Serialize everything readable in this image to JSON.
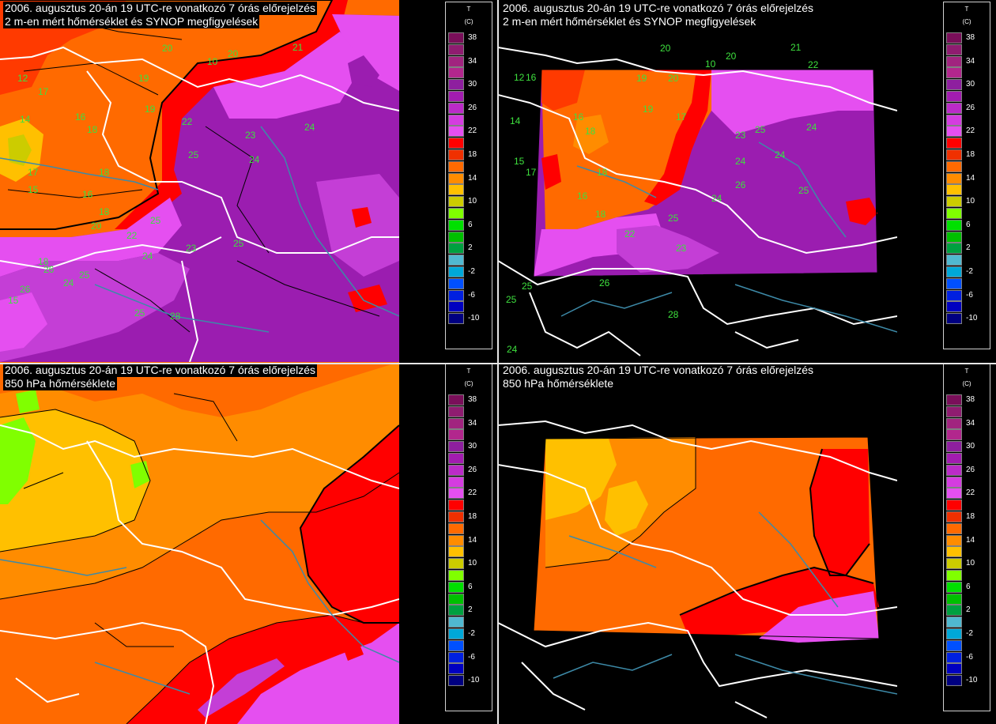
{
  "panels": [
    {
      "title_line1": "2006. augusztus 20-án 19 UTC-re vonatkozó  7 órás előrejelzés",
      "title_line2": "2 m-en mért hőmérséklet és SYNOP megfigyelések",
      "type": "2m",
      "framed": false,
      "observations": [
        {
          "value": "20"
        },
        {
          "value": "10"
        },
        {
          "value": "19"
        },
        {
          "value": "20"
        },
        {
          "value": "21"
        },
        {
          "value": "12"
        },
        {
          "value": "17"
        },
        {
          "value": "19"
        },
        {
          "value": "24"
        },
        {
          "value": "22"
        },
        {
          "value": "14"
        },
        {
          "value": "16"
        },
        {
          "value": "18"
        },
        {
          "value": "23"
        },
        {
          "value": "25"
        },
        {
          "value": "17"
        },
        {
          "value": "18"
        },
        {
          "value": "24"
        },
        {
          "value": "16"
        },
        {
          "value": "18"
        },
        {
          "value": "25"
        },
        {
          "value": "24"
        },
        {
          "value": "20"
        },
        {
          "value": "22"
        },
        {
          "value": "23"
        },
        {
          "value": "18"
        },
        {
          "value": "26"
        },
        {
          "value": "25"
        },
        {
          "value": "24"
        },
        {
          "value": "26"
        },
        {
          "value": "25"
        },
        {
          "value": "28"
        },
        {
          "value": "25"
        },
        {
          "value": "15"
        },
        {
          "value": "15"
        }
      ]
    },
    {
      "title_line1": "2006. augusztus 20-án 19 UTC-re vonatkozó  7 órás előrejelzés",
      "title_line2": "2 m-en mért hőmérséklet és SYNOP megfigyelések",
      "type": "2m",
      "framed": true,
      "observations": [
        {
          "value": "20"
        },
        {
          "value": "10"
        },
        {
          "value": "19"
        },
        {
          "value": "20"
        },
        {
          "value": "21"
        },
        {
          "value": "22"
        },
        {
          "value": "12"
        },
        {
          "value": "16"
        },
        {
          "value": "20"
        },
        {
          "value": "17"
        },
        {
          "value": "19"
        },
        {
          "value": "14"
        },
        {
          "value": "16"
        },
        {
          "value": "18"
        },
        {
          "value": "23"
        },
        {
          "value": "24"
        },
        {
          "value": "25"
        },
        {
          "value": "17"
        },
        {
          "value": "18"
        },
        {
          "value": "24"
        },
        {
          "value": "16"
        },
        {
          "value": "18"
        },
        {
          "value": "25"
        },
        {
          "value": "24"
        },
        {
          "value": "26"
        },
        {
          "value": "22"
        },
        {
          "value": "23"
        },
        {
          "value": "24"
        },
        {
          "value": "25"
        },
        {
          "value": "26"
        },
        {
          "value": "25"
        },
        {
          "value": "25"
        },
        {
          "value": "28"
        },
        {
          "value": "24"
        },
        {
          "value": "15"
        }
      ]
    },
    {
      "title_line1": "2006. augusztus 20-án 19 UTC-re vonatkozó  7 órás előrejelzés",
      "title_line2": "850 hPa hőmérséklete",
      "type": "850",
      "framed": false,
      "observations": []
    },
    {
      "title_line1": "2006. augusztus 20-án 19 UTC-re vonatkozó  7 órás előrejelzés",
      "title_line2": "850 hPa hőmérséklete",
      "type": "850",
      "framed": true,
      "observations": []
    }
  ],
  "legend": {
    "variable": "T",
    "unit": "(C)",
    "levels": [
      {
        "label": "38",
        "color": "#7a0f5a"
      },
      {
        "label": "",
        "color": "#8f1c70"
      },
      {
        "label": "34",
        "color": "#a1247f"
      },
      {
        "label": "",
        "color": "#b2278d"
      },
      {
        "label": "30",
        "color": "#8e1f9f"
      },
      {
        "label": "",
        "color": "#a21cb0"
      },
      {
        "label": "26",
        "color": "#bb2bc8"
      },
      {
        "label": "",
        "color": "#d43ce0"
      },
      {
        "label": "22",
        "color": "#e54ff0"
      },
      {
        "label": "",
        "color": "#ff0000"
      },
      {
        "label": "18",
        "color": "#f03000"
      },
      {
        "label": "",
        "color": "#ff6a00"
      },
      {
        "label": "14",
        "color": "#ff8c00"
      },
      {
        "label": "",
        "color": "#ffc000"
      },
      {
        "label": "10",
        "color": "#cccc00"
      },
      {
        "label": "",
        "color": "#80ff00"
      },
      {
        "label": "6",
        "color": "#00e000"
      },
      {
        "label": "",
        "color": "#00c000"
      },
      {
        "label": "2",
        "color": "#00a040"
      },
      {
        "label": "",
        "color": "#50b8d0"
      },
      {
        "label": "-2",
        "color": "#00a8d8"
      },
      {
        "label": "",
        "color": "#0050ff"
      },
      {
        "label": "-6",
        "color": "#0020e0"
      },
      {
        "label": "",
        "color": "#0000c0"
      },
      {
        "label": "-10",
        "color": "#000080"
      }
    ]
  },
  "colors": {
    "magenta_light": "#e54ff0",
    "magenta_mid": "#c43ed6",
    "purple_dark": "#9b1db0",
    "red": "#ff0000",
    "red_orange": "#ff3a00",
    "orange": "#ff6a00",
    "orange_light": "#ff8c00",
    "yellow": "#ffc000",
    "green_lime": "#80ff00",
    "border": "#ffffff",
    "river": "#3d8aa8",
    "contour": "#000000",
    "obs_text": "#3ee03e"
  }
}
